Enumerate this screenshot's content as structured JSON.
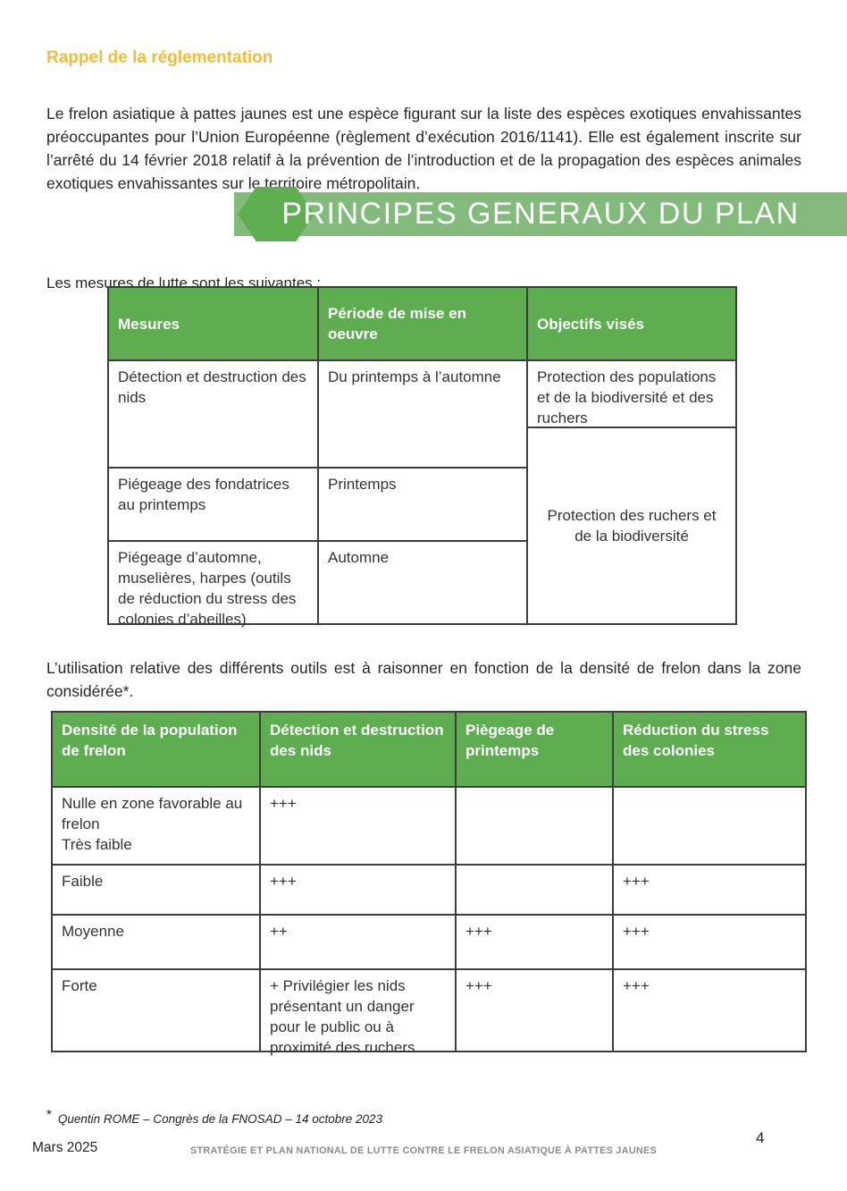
{
  "page": {
    "section_heading": "Rappel de la réglementation",
    "intro_paragraph": "Le frelon asiatique à pattes jaunes est une espèce figurant sur la liste des espèces exotiques envahissantes préoccupantes pour l’Union Européenne (règlement d’exécution 2016/1141). Elle est également inscrite sur l’arrêté du 14 février 2018 relatif à la prévention de l’introduction et de la propagation des espèces animales exotiques envahissantes sur le territoire métropolitain.",
    "banner_title": "PRINCIPES GENERAUX DU PLAN",
    "measures_intro": "Les mesures de lutte sont les suivantes :",
    "density_paragraph": "L’utilisation relative des différents outils est à raisonner en fonction de la densité de frelon dans la zone considérée*.",
    "footnote_marker": "*",
    "footnote_text": "Quentin ROME – Congrès de la FNOSAD – 14 octobre 2023",
    "footer": {
      "date": "Mars 2025",
      "title": "STRATÉGIE ET PLAN NATIONAL DE LUTTE CONTRE LE FRELON ASIATIQUE À PATTES JAUNES",
      "page_number": "4"
    }
  },
  "measures_table": {
    "headers": [
      "Mesures",
      "Période de mise en oeuvre",
      "Objectifs visés"
    ],
    "rows": [
      {
        "measure": "Détection et destruction des nids",
        "period": "Du printemps à l’automne"
      },
      {
        "measure": "Piégeage des fondatrices au printemps",
        "period": "Printemps"
      },
      {
        "measure": "Piégeage d’automne, muselières, harpes (outils de réduction du stress des colonies d’abeilles)",
        "period": "Automne"
      }
    ],
    "objectives": [
      "Protection des populations et de la biodiversité et des ruchers",
      "Protection des ruchers et de la biodiversité"
    ]
  },
  "density_table": {
    "headers": [
      "Densité de la population de frelon",
      "Détection et destruction des nids",
      "Piègeage de printemps",
      "Réduction du stress des colonies"
    ],
    "rows": [
      {
        "density": "Nulle en zone favorable au frelon\nTrès faible",
        "detection": "+++",
        "trapping": "",
        "stress": ""
      },
      {
        "density": "Faible",
        "detection": "+++",
        "trapping": "",
        "stress": "+++"
      },
      {
        "density": "Moyenne",
        "detection": "++",
        "trapping": "+++",
        "stress": "+++"
      },
      {
        "density": "Forte",
        "detection": "+ Privilégier les nids présentant un danger pour le public ou à proximité des ruchers",
        "trapping": "+++",
        "stress": "+++"
      }
    ]
  },
  "icons": {
    "banner_marker": "hexagon-icon"
  },
  "colors": {
    "heading_gold": "#f2bd3a",
    "banner_bar_green": "#83bb7d",
    "banner_hexagon_green": "#5fae52",
    "table_header_green": "#5fad51",
    "table_border": "#3d3d3d",
    "footer_gray": "#8b8b8b"
  }
}
